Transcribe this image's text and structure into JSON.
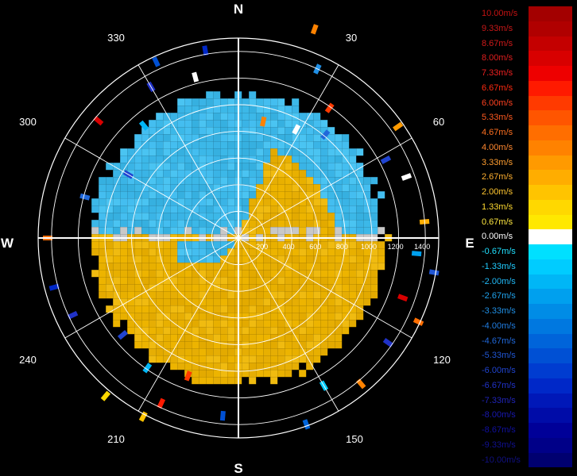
{
  "chart_data": {
    "type": "polar",
    "cardinals": {
      "north": "N",
      "east": "E",
      "south": "S",
      "west": "W"
    },
    "azimuth_labels": [
      "30",
      "60",
      "120",
      "150",
      "210",
      "240",
      "300",
      "330"
    ],
    "range_labels": [
      "200",
      "400",
      "600",
      "800",
      "1000",
      "1200",
      "1400"
    ],
    "range_max": 1500,
    "angular_grid_step_deg": 30,
    "legend_title": "",
    "colorbar": [
      {
        "label": "10.00m/s",
        "value": 10.0,
        "color": "#a30000",
        "text_color": "#c41212"
      },
      {
        "label": "9.33m/s",
        "value": 9.33,
        "color": "#b00000",
        "text_color": "#c81818"
      },
      {
        "label": "8.67m/s",
        "value": 8.67,
        "color": "#c40000",
        "text_color": "#d01a1a"
      },
      {
        "label": "8.00m/s",
        "value": 8.0,
        "color": "#d80000",
        "text_color": "#e01e1e"
      },
      {
        "label": "7.33m/s",
        "value": 7.33,
        "color": "#ee0000",
        "text_color": "#ee2020"
      },
      {
        "label": "6.67m/s",
        "value": 6.67,
        "color": "#ff1a00",
        "text_color": "#ff2a10"
      },
      {
        "label": "6.00m/s",
        "value": 6.0,
        "color": "#ff3a00",
        "text_color": "#ff4020"
      },
      {
        "label": "5.33m/s",
        "value": 5.33,
        "color": "#ff5500",
        "text_color": "#ff5a20"
      },
      {
        "label": "4.67m/s",
        "value": 4.67,
        "color": "#ff6e00",
        "text_color": "#ff7020"
      },
      {
        "label": "4.00m/s",
        "value": 4.0,
        "color": "#ff8200",
        "text_color": "#ff8830"
      },
      {
        "label": "3.33m/s",
        "value": 3.33,
        "color": "#ff9a00",
        "text_color": "#ff9e30"
      },
      {
        "label": "2.67m/s",
        "value": 2.67,
        "color": "#ffad00",
        "text_color": "#ffb030"
      },
      {
        "label": "2.00m/s",
        "value": 2.0,
        "color": "#ffc400",
        "text_color": "#ffc630"
      },
      {
        "label": "1.33m/s",
        "value": 1.33,
        "color": "#ffd800",
        "text_color": "#ffda30"
      },
      {
        "label": "0.67m/s",
        "value": 0.67,
        "color": "#ffe800",
        "text_color": "#ffe840"
      },
      {
        "label": "0.00m/s",
        "value": 0.0,
        "color": "#ffffff",
        "text_color": "#ffffff"
      },
      {
        "label": "-0.67m/s",
        "value": -0.67,
        "color": "#00e0ff",
        "text_color": "#20e0ff"
      },
      {
        "label": "-1.33m/s",
        "value": -1.33,
        "color": "#00ccff",
        "text_color": "#20ccff"
      },
      {
        "label": "-2.00m/s",
        "value": -2.0,
        "color": "#00b6f6",
        "text_color": "#20b8f6"
      },
      {
        "label": "-2.67m/s",
        "value": -2.67,
        "color": "#00a0ee",
        "text_color": "#20a4ee"
      },
      {
        "label": "-3.33m/s",
        "value": -3.33,
        "color": "#008ce6",
        "text_color": "#2090e6"
      },
      {
        "label": "-4.00m/s",
        "value": -4.0,
        "color": "#0078e0",
        "text_color": "#207ce0"
      },
      {
        "label": "-4.67m/s",
        "value": -4.67,
        "color": "#0064da",
        "text_color": "#2068da"
      },
      {
        "label": "-5.33m/s",
        "value": -5.33,
        "color": "#0050d4",
        "text_color": "#2056d4"
      },
      {
        "label": "-6.00m/s",
        "value": -6.0,
        "color": "#003cd0",
        "text_color": "#2044d0"
      },
      {
        "label": "-6.67m/s",
        "value": -6.67,
        "color": "#0028c8",
        "text_color": "#2032c8"
      },
      {
        "label": "-7.33m/s",
        "value": -7.33,
        "color": "#0018b8",
        "text_color": "#2024b8"
      },
      {
        "label": "-8.00m/s",
        "value": -8.0,
        "color": "#000ca8",
        "text_color": "#1818b0"
      },
      {
        "label": "-8.67m/s",
        "value": -8.67,
        "color": "#000098",
        "text_color": "#1010a0"
      },
      {
        "label": "-9.33m/s",
        "value": -9.33,
        "color": "#000088",
        "text_color": "#101090"
      },
      {
        "label": "-10.00m/s",
        "value": -10.0,
        "color": "#000070",
        "text_color": "#101080"
      }
    ],
    "field": {
      "description_of_pattern": [],
      "receding_color": "#e8b000",
      "approaching_color": "#3cb8e8",
      "fill_range_max": 1100,
      "boundary_azimuth_deg": 90
    },
    "colors": {
      "background": "#000000",
      "grid": "#ffffff",
      "text": "#ffffff"
    }
  }
}
